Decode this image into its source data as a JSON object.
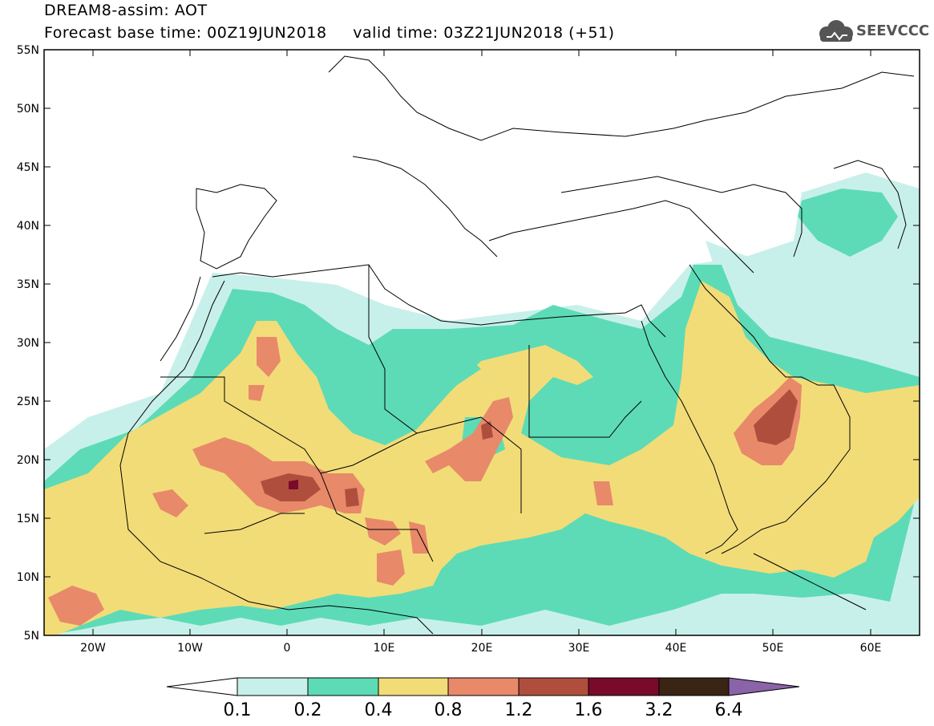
{
  "header": {
    "title": "DREAM8-assim: AOT",
    "subtitle": "Forecast base time: 00Z19JUN2018     valid time: 03Z21JUN2018 (+51)",
    "logo_text": "SEEVCCC"
  },
  "map": {
    "variable": "AOT",
    "region": {
      "lon_min": -25,
      "lon_max": 65,
      "lat_min": 5,
      "lat_max": 55
    },
    "lat_labels": [
      "55N",
      "50N",
      "45N",
      "40N",
      "35N",
      "30N",
      "25N",
      "20N",
      "15N",
      "10N",
      "5N"
    ],
    "lon_labels": [
      "20W",
      "10W",
      "0",
      "10E",
      "20E",
      "30E",
      "40E",
      "50E",
      "60E"
    ],
    "levels_colors": {
      "0.1-0.2": "#c8f0ea",
      "0.2-0.4": "#5ddbb6",
      "0.4-0.8": "#f2dc78",
      "0.8-1.2": "#e8896a",
      "1.2-1.6": "#b04e3e",
      "1.6-3.2": "#7a0a2a",
      "3.2-6.4": "#3a2414",
      ">6.4": "#8b63a8"
    }
  },
  "colorbar": {
    "labels": [
      "0.1",
      "0.2",
      "0.4",
      "0.8",
      "1.2",
      "1.6",
      "3.2",
      "6.4"
    ],
    "colors": [
      "#ffffff",
      "#c8f0ea",
      "#5ddbb6",
      "#f2dc78",
      "#e8896a",
      "#b04e3e",
      "#7a0a2a",
      "#3a2414",
      "#8b63a8"
    ]
  }
}
